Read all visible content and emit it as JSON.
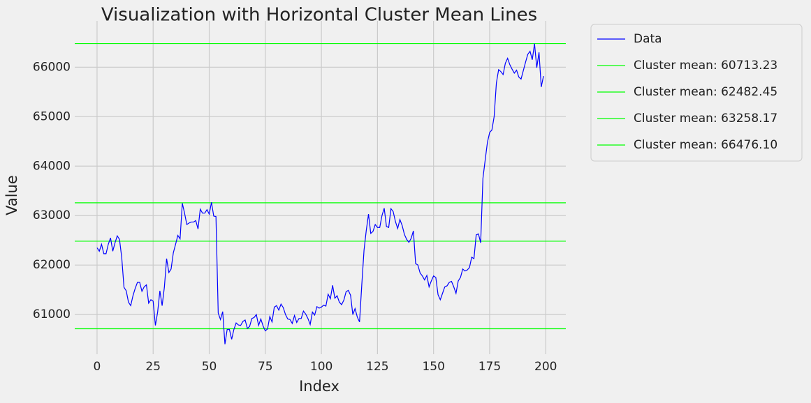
{
  "chart_data": {
    "type": "line",
    "title": "Visualization with Horizontal Cluster Mean Lines",
    "xlabel": "Index",
    "ylabel": "Value",
    "x": [
      0,
      1,
      2,
      3,
      4,
      5,
      6,
      7,
      8,
      9,
      10,
      11,
      12,
      13,
      14,
      15,
      16,
      17,
      18,
      19,
      20,
      21,
      22,
      23,
      24,
      25,
      26,
      27,
      28,
      29,
      30,
      31,
      32,
      33,
      34,
      35,
      36,
      37,
      38,
      39,
      40,
      41,
      42,
      43,
      44,
      45,
      46,
      47,
      48,
      49,
      50,
      51,
      52,
      53,
      54,
      55,
      56,
      57,
      58,
      59,
      60,
      61,
      62,
      63,
      64,
      65,
      66,
      67,
      68,
      69,
      70,
      71,
      72,
      73,
      74,
      75,
      76,
      77,
      78,
      79,
      80,
      81,
      82,
      83,
      84,
      85,
      86,
      87,
      88,
      89,
      90,
      91,
      92,
      93,
      94,
      95,
      96,
      97,
      98,
      99,
      100,
      101,
      102,
      103,
      104,
      105,
      106,
      107,
      108,
      109,
      110,
      111,
      112,
      113,
      114,
      115,
      116,
      117,
      118,
      119,
      120,
      121,
      122,
      123,
      124,
      125,
      126,
      127,
      128,
      129,
      130,
      131,
      132,
      133,
      134,
      135,
      136,
      137,
      138,
      139,
      140,
      141,
      142,
      143,
      144,
      145,
      146,
      147,
      148,
      149,
      150,
      151,
      152,
      153,
      154,
      155,
      156,
      157,
      158,
      159,
      160,
      161,
      162,
      163,
      164,
      165,
      166,
      167,
      168,
      169,
      170,
      171,
      172,
      173,
      174,
      175,
      176,
      177,
      178,
      179,
      180,
      181,
      182,
      183,
      184,
      185,
      186,
      187,
      188,
      189,
      190,
      191,
      192,
      193,
      194,
      195,
      196,
      197,
      198,
      199
    ],
    "series": [
      {
        "name": "Data",
        "color": "#0000ff",
        "values": [
          62350,
          62280,
          62420,
          62230,
          62230,
          62420,
          62550,
          62280,
          62450,
          62590,
          62520,
          62150,
          61550,
          61480,
          61250,
          61180,
          61380,
          61530,
          61650,
          61650,
          61470,
          61560,
          61600,
          61230,
          61300,
          61270,
          60780,
          61050,
          61480,
          61180,
          61550,
          62130,
          61850,
          61920,
          62250,
          62420,
          62600,
          62530,
          63250,
          63050,
          62820,
          62850,
          62870,
          62870,
          62900,
          62730,
          63130,
          63050,
          63050,
          63120,
          63030,
          63270,
          62990,
          62980,
          61030,
          60900,
          61060,
          60400,
          60700,
          60700,
          60500,
          60700,
          60830,
          60790,
          60780,
          60860,
          60890,
          60720,
          60760,
          60920,
          60940,
          61000,
          60780,
          60910,
          60770,
          60670,
          60710,
          60960,
          60850,
          61150,
          61180,
          61090,
          61210,
          61140,
          61000,
          60910,
          60900,
          60820,
          60980,
          60840,
          60920,
          60920,
          61070,
          61010,
          60920,
          60800,
          61050,
          60990,
          61160,
          61130,
          61150,
          61190,
          61170,
          61410,
          61320,
          61590,
          61330,
          61380,
          61250,
          61200,
          61290,
          61460,
          61490,
          61390,
          61000,
          61120,
          60950,
          60850,
          61600,
          62300,
          62700,
          63030,
          62640,
          62680,
          62820,
          62760,
          62760,
          63000,
          63150,
          62780,
          62760,
          63140,
          63080,
          62880,
          62740,
          62920,
          62800,
          62620,
          62520,
          62460,
          62540,
          62690,
          62030,
          62000,
          61840,
          61780,
          61700,
          61790,
          61560,
          61680,
          61780,
          61750,
          61400,
          61300,
          61430,
          61560,
          61580,
          61650,
          61670,
          61560,
          61430,
          61680,
          61750,
          61920,
          61880,
          61900,
          61950,
          62160,
          62130,
          62610,
          62630,
          62450,
          63750,
          64120,
          64480,
          64680,
          64730,
          65000,
          65680,
          65950,
          65910,
          65850,
          66080,
          66180,
          66050,
          65960,
          65880,
          65940,
          65800,
          65760,
          65930,
          66100,
          66260,
          66320,
          66150,
          66476,
          65990,
          66300,
          65600,
          65820
        ]
      }
    ],
    "hlines": [
      {
        "name": "Cluster mean: 60713.23",
        "value": 60713.23,
        "color": "#00ff00"
      },
      {
        "name": "Cluster mean: 62482.45",
        "value": 62482.45,
        "color": "#00ff00"
      },
      {
        "name": "Cluster mean: 63258.17",
        "value": 63258.17,
        "color": "#00ff00"
      },
      {
        "name": "Cluster mean: 66476.10",
        "value": 66476.1,
        "color": "#00ff00"
      }
    ],
    "xlim": [
      -9.95,
      208.95
    ],
    "xticks": [
      0,
      25,
      50,
      75,
      100,
      125,
      150,
      175,
      200
    ],
    "ylim": [
      60100,
      66780
    ],
    "yticks": [
      61000,
      62000,
      63000,
      64000,
      65000,
      66000
    ],
    "grid": true,
    "legend": "outside upper right"
  }
}
